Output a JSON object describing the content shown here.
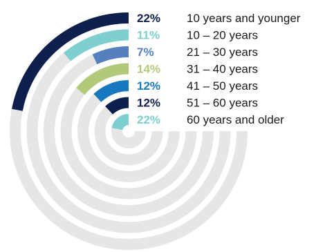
{
  "chart_data": {
    "type": "radial-bar",
    "unit": "%",
    "categories": [
      "10 years and younger",
      "10 – 20 years",
      "21 – 30 years",
      "31 – 40 years",
      "41 – 50 years",
      "51 – 60 years",
      "60 years and older"
    ],
    "values": [
      22,
      11,
      7,
      14,
      12,
      12,
      22
    ],
    "value_labels": [
      "22%",
      "11%",
      "7%",
      "14%",
      "12%",
      "12%",
      "22%"
    ],
    "colors": [
      "#0d1f4d",
      "#7ecfcf",
      "#5580bd",
      "#b3c97a",
      "#1778bf",
      "#0d1f4d",
      "#7ecfcf"
    ],
    "track_color": "#e6e6e6",
    "legend_placement": "right"
  }
}
